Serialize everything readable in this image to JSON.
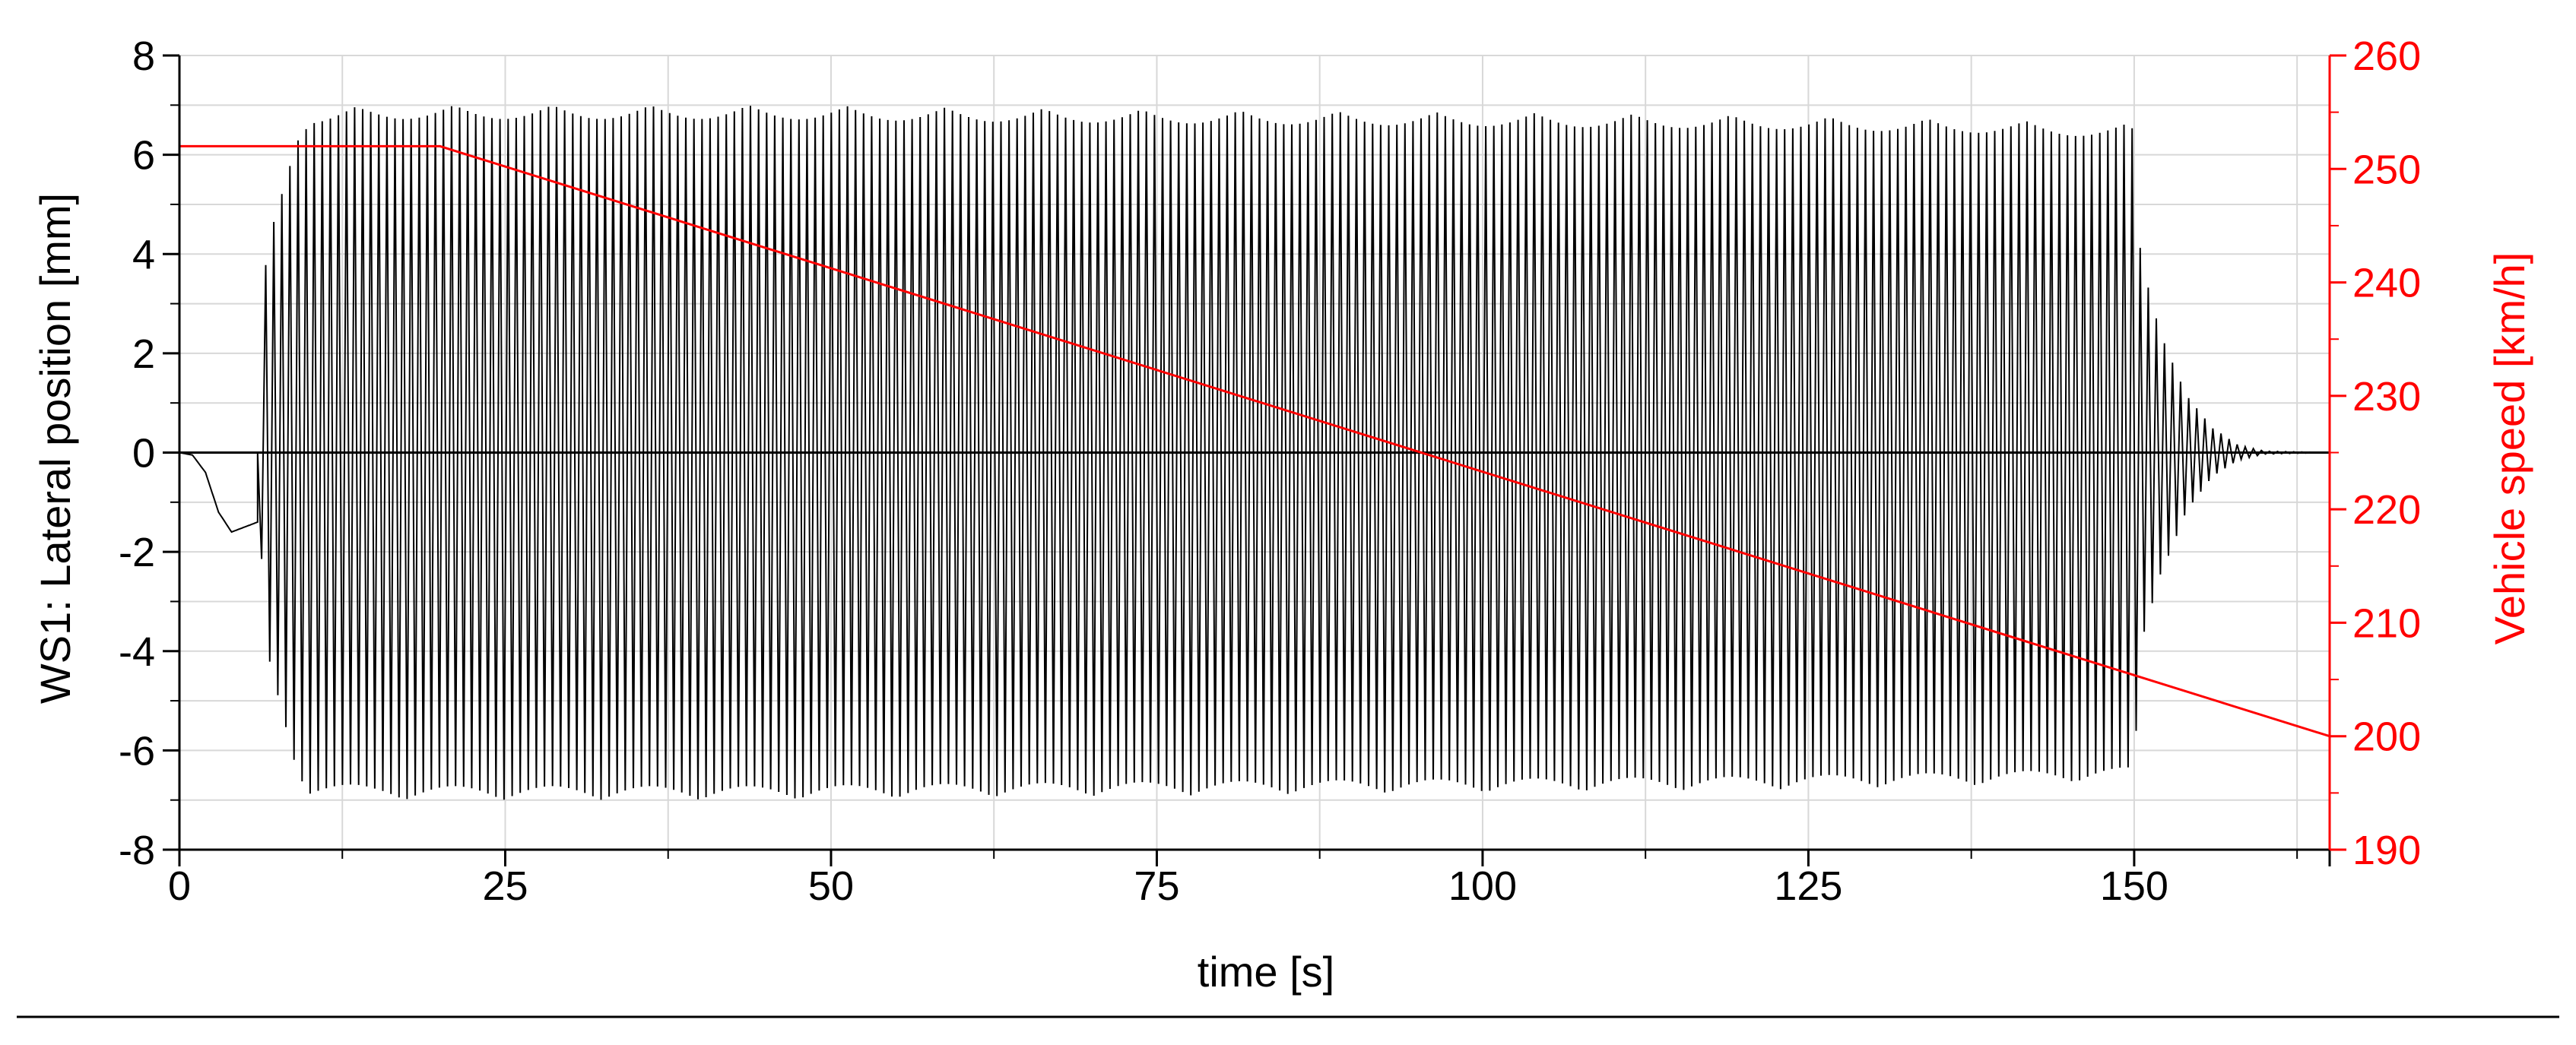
{
  "chart_data": {
    "type": "line",
    "xlabel": "time [s]",
    "ylabel_left": "WS1: Lateral position [mm]",
    "ylabel_right": "Vehicle speed [km/h]",
    "xlim": [
      0,
      165
    ],
    "ylim_left": [
      -8,
      8
    ],
    "ylim_right": [
      190,
      260
    ],
    "x_ticks": [
      0,
      25,
      50,
      75,
      100,
      125,
      150
    ],
    "y_ticks_left": [
      -8,
      -6,
      -4,
      -2,
      0,
      2,
      4,
      6,
      8
    ],
    "y_ticks_right": [
      190,
      200,
      210,
      220,
      230,
      240,
      250,
      260
    ],
    "grid": true,
    "colors": {
      "lateral": "#000000",
      "speed": "#ff0000",
      "axis_right": "#ff0000",
      "grid": "#d8d8d8"
    },
    "series": [
      {
        "axis": "left",
        "amplitude_envelope": {
          "t": [
            0,
            6,
            6.5,
            7,
            8,
            9,
            10,
            15,
            30,
            45,
            60,
            80,
            100,
            120,
            140,
            150,
            150.5,
            152,
            154,
            156,
            158,
            160,
            165
          ],
          "amp": [
            0,
            0,
            3.6,
            4.5,
            5.5,
            6.5,
            6.9,
            7.0,
            7.0,
            7.0,
            6.95,
            6.9,
            6.85,
            6.8,
            6.7,
            6.6,
            4.0,
            2.5,
            1.2,
            0.5,
            0.15,
            0.03,
            0
          ]
        },
        "initial_offset": {
          "t": [
            0,
            1,
            2,
            3,
            4,
            5,
            6
          ],
          "y": [
            0,
            -0.05,
            -0.4,
            -1.2,
            -1.6,
            -1.5,
            -1.4
          ]
        },
        "oscillation_period_s": 0.62
      },
      {
        "axis": "right",
        "x": [
          0,
          20,
          165
        ],
        "y": [
          252,
          252,
          200
        ]
      }
    ]
  }
}
